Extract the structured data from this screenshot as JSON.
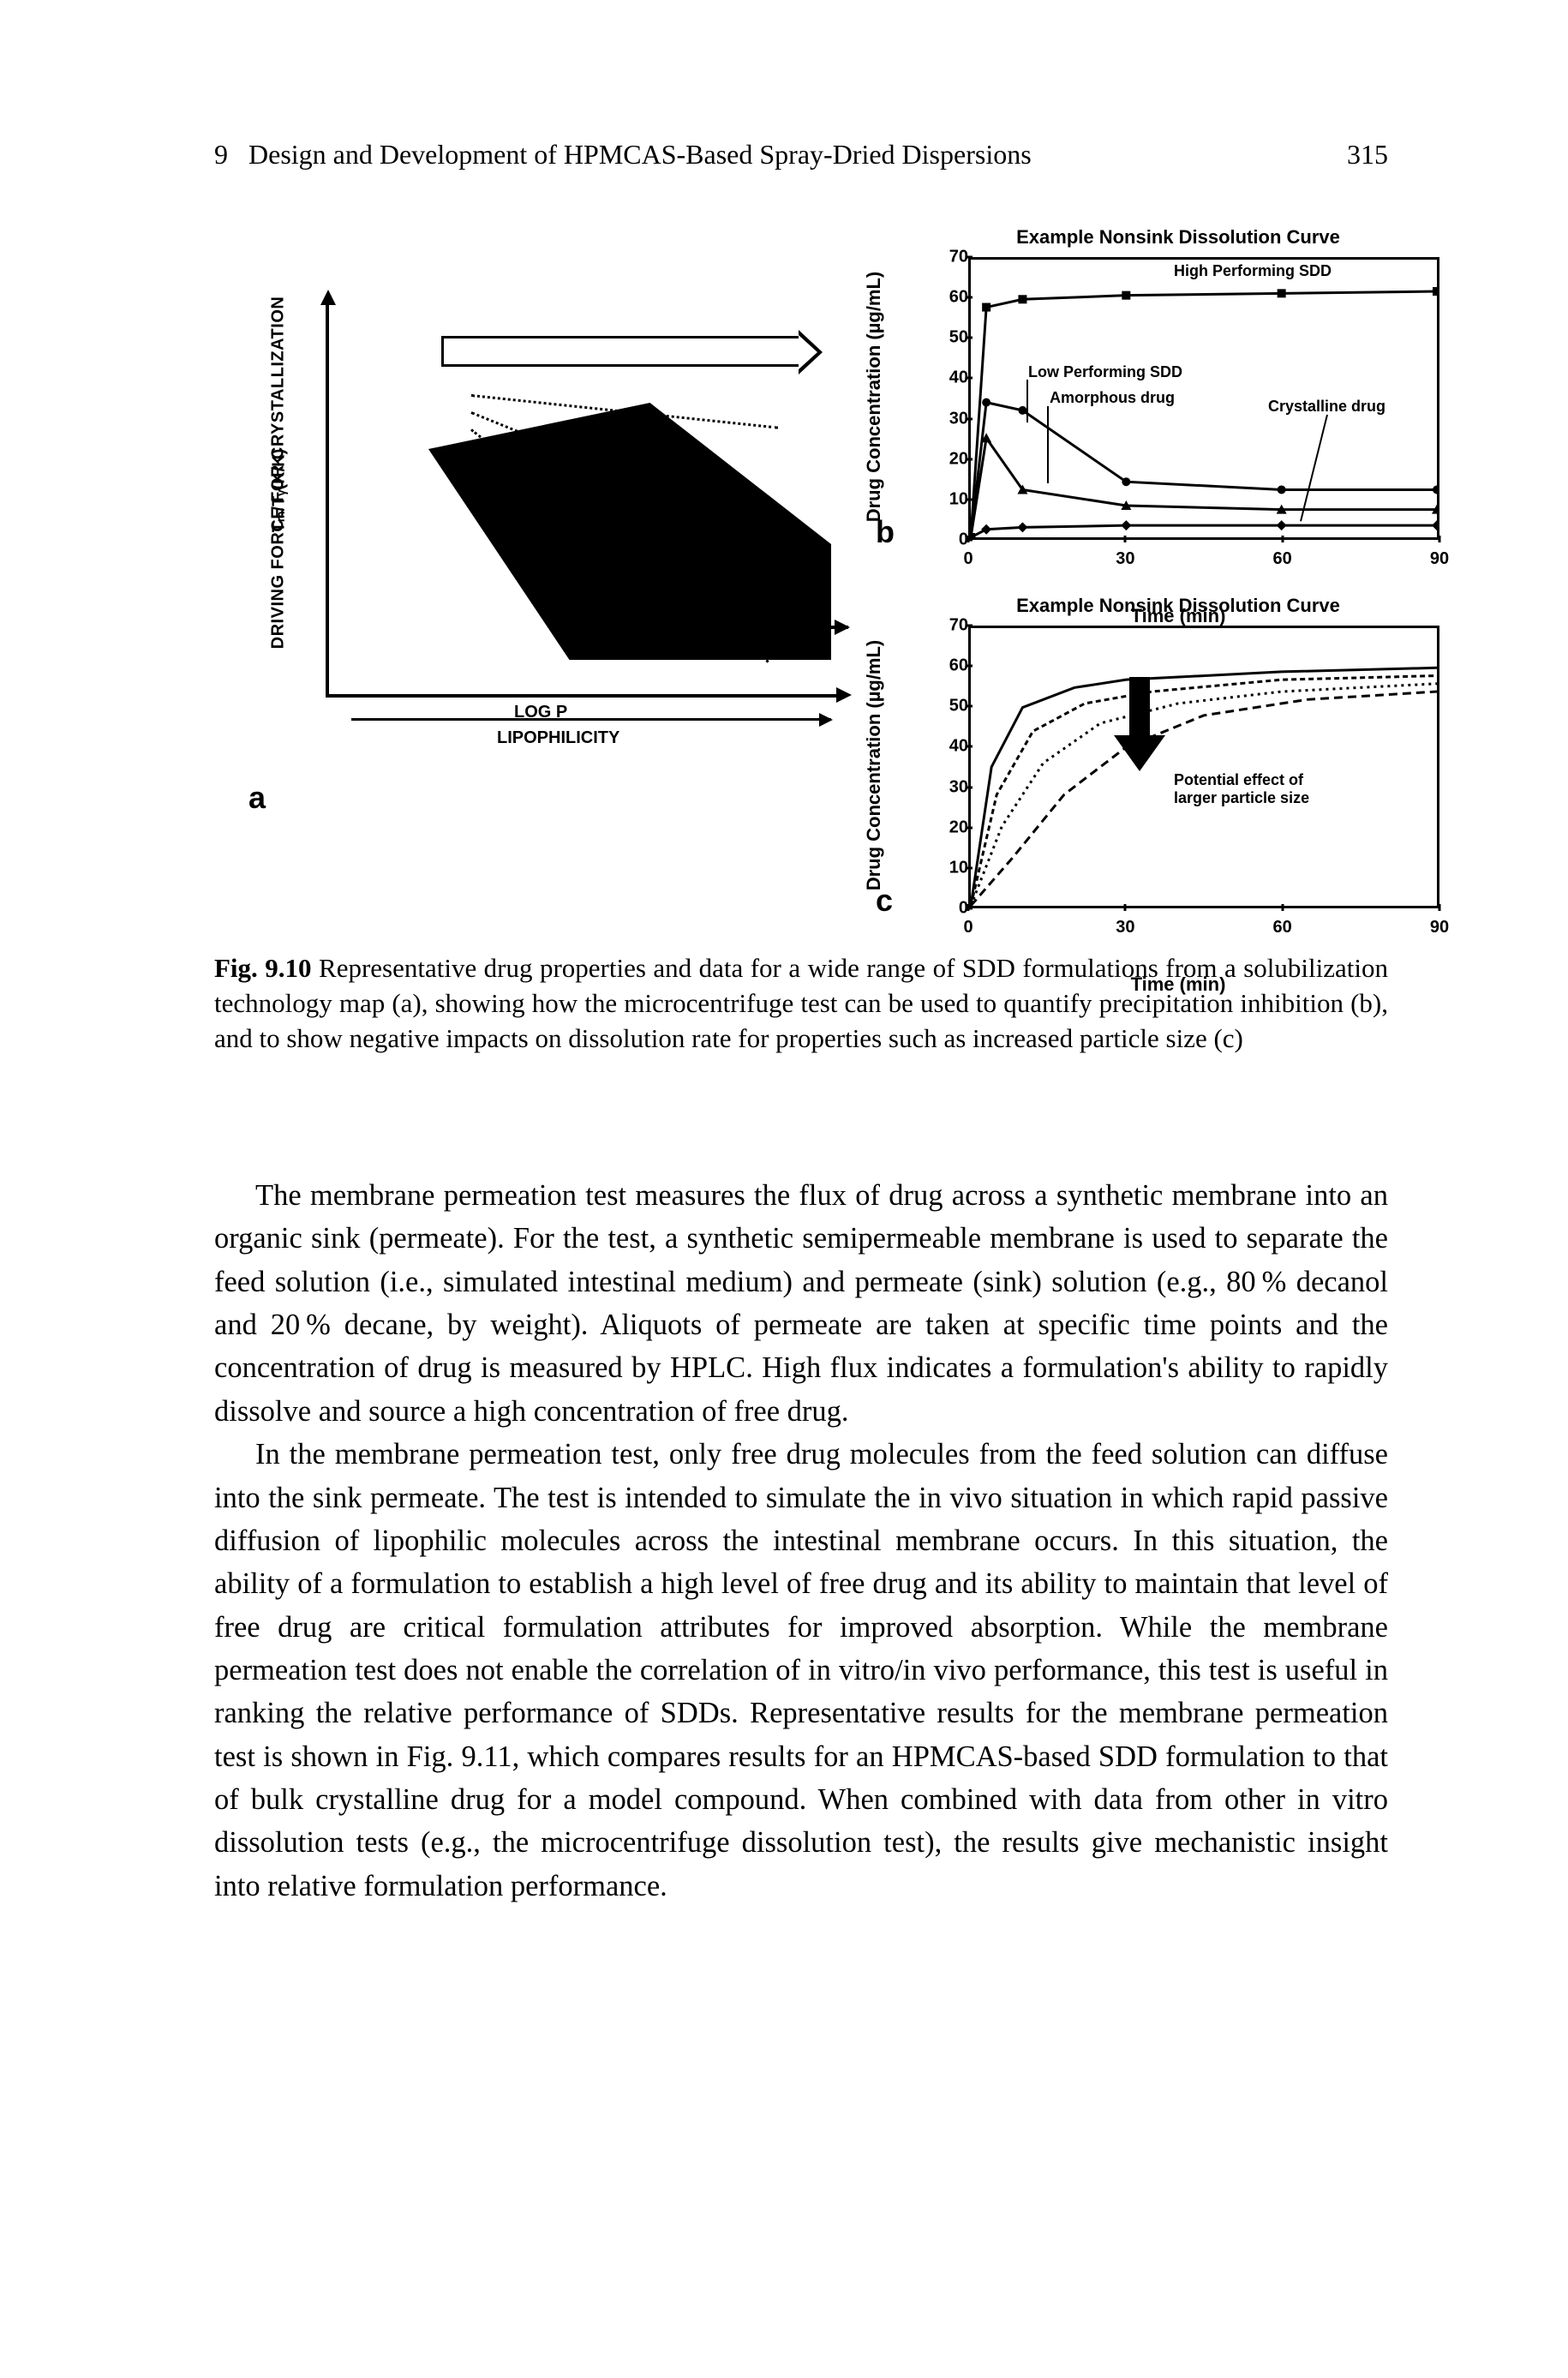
{
  "header": {
    "chapter_num": "9",
    "chapter_title": "Design and Development of HPMCAS-Based Spray-Dried Dispersions",
    "page_num": "315"
  },
  "panel_a": {
    "label": "a",
    "y_axis_outer": "DRIVING FORCE FOR CRYSTALLIZATION",
    "y_axis_inner": "Tₘ/Tᵧ(K/K)",
    "x_axis_top": "LOG P",
    "x_axis_bottom": "LIPOPHILICITY"
  },
  "chart_b": {
    "label": "b",
    "title": "Example Nonsink Dissolution Curve",
    "ylabel": "Drug Concentration (µg/mL)",
    "xlabel": "Time (min)",
    "xlim": [
      0,
      90
    ],
    "ylim": [
      0,
      70
    ],
    "xticks": [
      0,
      30,
      60,
      90
    ],
    "yticks": [
      0,
      10,
      20,
      30,
      40,
      50,
      60,
      70
    ],
    "series": [
      {
        "name": "High Performing SDD",
        "marker": "square",
        "data": [
          [
            0,
            0
          ],
          [
            3,
            58
          ],
          [
            10,
            60
          ],
          [
            30,
            61
          ],
          [
            60,
            61.5
          ],
          [
            90,
            62
          ]
        ]
      },
      {
        "name": "Low Performing SDD",
        "marker": "circle",
        "data": [
          [
            0,
            0
          ],
          [
            3,
            34
          ],
          [
            10,
            32
          ],
          [
            30,
            14
          ],
          [
            60,
            12
          ],
          [
            90,
            12
          ]
        ]
      },
      {
        "name": "Amorphous drug",
        "marker": "triangle",
        "data": [
          [
            0,
            0
          ],
          [
            3,
            25
          ],
          [
            10,
            12
          ],
          [
            30,
            8
          ],
          [
            60,
            7
          ],
          [
            90,
            7
          ]
        ]
      },
      {
        "name": "Crystalline drug",
        "marker": "diamond",
        "data": [
          [
            0,
            0
          ],
          [
            3,
            2
          ],
          [
            10,
            2.5
          ],
          [
            30,
            3
          ],
          [
            60,
            3
          ],
          [
            90,
            3
          ]
        ]
      }
    ],
    "labels": {
      "high": "High Performing SDD",
      "low": "Low Performing SDD",
      "amorph": "Amorphous drug",
      "cryst": "Crystalline drug"
    },
    "line_color": "#000000",
    "line_width": 3
  },
  "chart_c": {
    "label": "c",
    "title": "Example Nonsink Dissolution Curve",
    "ylabel": "Drug Concentration (µg/mL)",
    "xlabel": "Time (min)",
    "xlim": [
      0,
      90
    ],
    "ylim": [
      0,
      70
    ],
    "xticks": [
      0,
      30,
      60,
      90
    ],
    "yticks": [
      0,
      10,
      20,
      30,
      40,
      50,
      60,
      70
    ],
    "curves": [
      {
        "dash": "solid",
        "data": [
          [
            0,
            0
          ],
          [
            4,
            35
          ],
          [
            10,
            50
          ],
          [
            20,
            55
          ],
          [
            30,
            57
          ],
          [
            60,
            59
          ],
          [
            90,
            60
          ]
        ]
      },
      {
        "dash": "6,4",
        "data": [
          [
            0,
            0
          ],
          [
            5,
            28
          ],
          [
            12,
            44
          ],
          [
            22,
            51
          ],
          [
            35,
            54
          ],
          [
            60,
            57
          ],
          [
            90,
            58
          ]
        ]
      },
      {
        "dash": "3,5",
        "data": [
          [
            0,
            0
          ],
          [
            6,
            20
          ],
          [
            14,
            36
          ],
          [
            25,
            46
          ],
          [
            40,
            51
          ],
          [
            60,
            54
          ],
          [
            90,
            56
          ]
        ]
      },
      {
        "dash": "10,6",
        "data": [
          [
            0,
            0
          ],
          [
            8,
            12
          ],
          [
            18,
            28
          ],
          [
            30,
            40
          ],
          [
            45,
            48
          ],
          [
            65,
            52
          ],
          [
            90,
            54
          ]
        ]
      }
    ],
    "annotation": "Potential effect of\nlarger particle size",
    "line_color": "#000000",
    "line_width": 3
  },
  "caption": {
    "fig_label": "Fig. 9.10",
    "text": "Representative drug properties and data for a wide range of SDD formulations from a solubilization technology map (a), showing how the microcentrifuge test can be used to quantify precipitation inhibition (b), and to show negative impacts on dissolution rate for properties such as increased particle size (c)"
  },
  "body": {
    "p1": "The membrane permeation test measures the flux of drug across a synthetic membrane into an organic sink (permeate). For the test, a synthetic semipermeable membrane is used to separate the feed solution (i.e., simulated intestinal medium) and permeate (sink) solution (e.g., 80 % decanol and 20 % decane, by weight). Aliquots of permeate are taken at specific time points and the concentration of drug is measured by HPLC. High flux indicates a formulation's ability to rapidly dissolve and source a high concentration of free drug.",
    "p2": "In the membrane permeation test, only free drug molecules from the feed solution can diffuse into the sink permeate. The test is intended to simulate the in vivo situation in which rapid passive diffusion of lipophilic molecules across the intestinal membrane occurs. In this situation, the ability of a formulation to establish a high level of free drug and its ability to maintain that level of free drug are critical formulation attributes for improved absorption. While the membrane permeation test does not enable the correlation of in vitro/in vivo performance, this test is useful in ranking the relative performance of SDDs. Representative results for the membrane permeation test is shown in Fig. 9.11, which compares results for an HPMCAS-based SDD formulation to that of bulk crystalline drug for a model compound. When combined with data from other in vitro dissolution tests (e.g., the microcentrifuge dissolution test), the results give mechanistic insight into relative formulation performance."
  }
}
